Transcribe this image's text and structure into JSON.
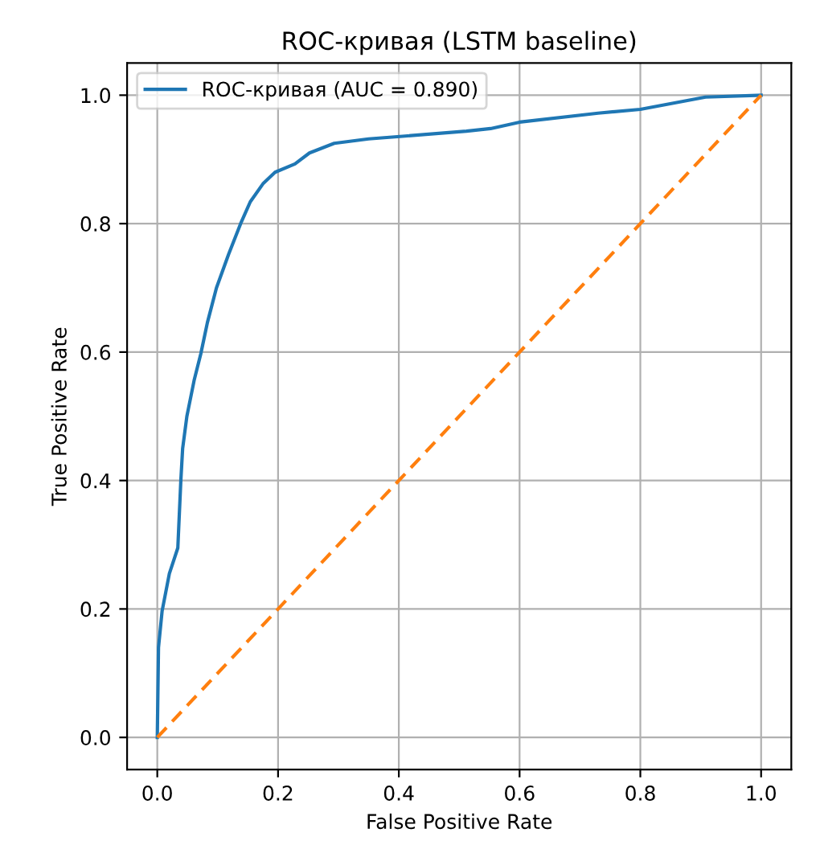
{
  "chart_data": {
    "type": "line",
    "title": "ROC-кривая (LSTM baseline)",
    "xlabel": "False Positive Rate",
    "ylabel": "True Positive Rate",
    "series": [
      {
        "name": "ROC-кривая (AUC = 0.890)",
        "color": "#1f77b4",
        "line_style": "solid",
        "x": [
          0,
          0.002,
          0.008,
          0.02,
          0.034,
          0.039,
          0.042,
          0.049,
          0.061,
          0.072,
          0.083,
          0.098,
          0.118,
          0.138,
          0.154,
          0.175,
          0.195,
          0.228,
          0.252,
          0.293,
          0.35,
          0.406,
          0.512,
          0.552,
          0.6,
          0.73,
          0.8,
          0.908,
          1.0
        ],
        "values": [
          0,
          0.14,
          0.197,
          0.255,
          0.295,
          0.4,
          0.45,
          0.5,
          0.556,
          0.597,
          0.646,
          0.7,
          0.752,
          0.8,
          0.834,
          0.862,
          0.88,
          0.893,
          0.91,
          0.925,
          0.932,
          0.936,
          0.944,
          0.948,
          0.958,
          0.972,
          0.978,
          0.997,
          1.0
        ]
      },
      {
        "color": "#ff7f0e",
        "line_style": "dashed",
        "x": [
          0,
          1
        ],
        "values": [
          0,
          1
        ]
      }
    ],
    "xlim": [
      -0.05,
      1.05
    ],
    "ylim": [
      -0.05,
      1.05
    ],
    "xticks": [
      {
        "value": 0,
        "label": "0.0"
      },
      0.2,
      0.4,
      0.6,
      0.8,
      {
        "value": 1,
        "label": "1.0"
      }
    ],
    "yticks": [
      {
        "value": 0,
        "label": "0.0"
      },
      0.2,
      0.4,
      0.6,
      0.8,
      {
        "value": 1,
        "label": "1.0"
      }
    ],
    "grid": true,
    "legend": "top left",
    "marker": "none"
  }
}
